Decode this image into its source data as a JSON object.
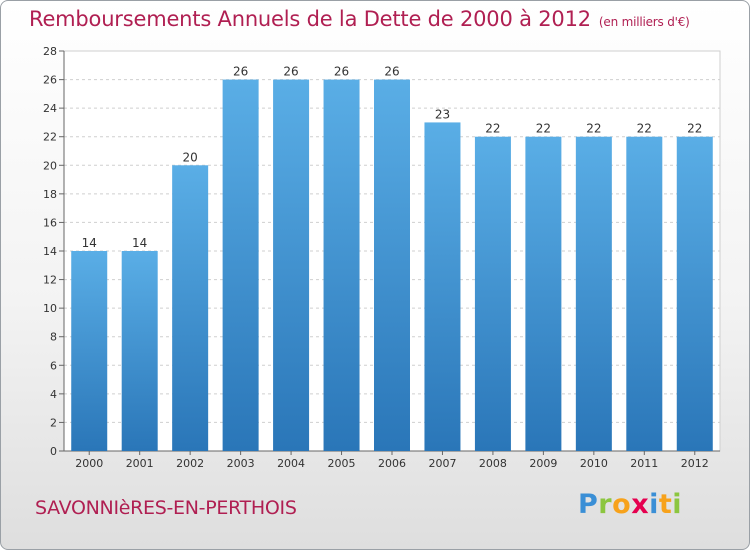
{
  "title": "Remboursements Annuels de la Dette de 2000 à 2012",
  "unit": "(en milliers d'€)",
  "town": "SAVONNIèRES-EN-PERTHOIS",
  "logo": "Proxiti",
  "colors": {
    "accent": "#b01f52",
    "bar_top": "#5aaee6",
    "bar_bottom": "#2a76b8"
  },
  "chart_data": {
    "type": "bar",
    "title": "Remboursements Annuels de la Dette de 2000 à 2012",
    "categories": [
      "2000",
      "2001",
      "2002",
      "2003",
      "2004",
      "2005",
      "2006",
      "2007",
      "2008",
      "2009",
      "2010",
      "2011",
      "2012"
    ],
    "values": [
      14,
      14,
      20,
      26,
      26,
      26,
      26,
      23,
      22,
      22,
      22,
      22,
      22
    ],
    "ylim": [
      0,
      28
    ],
    "yticks": [
      0,
      2,
      4,
      6,
      8,
      10,
      12,
      14,
      16,
      18,
      20,
      22,
      24,
      26,
      28
    ],
    "grid": true
  }
}
